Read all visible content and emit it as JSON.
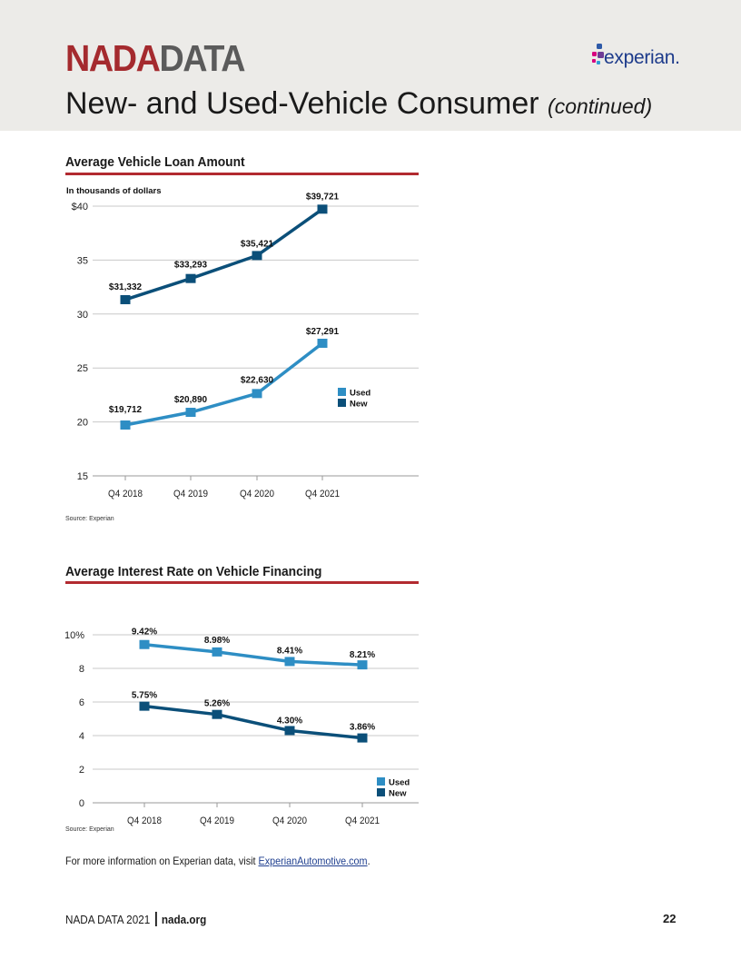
{
  "header": {
    "brand_nada": "NADA",
    "brand_data": "DATA",
    "title": "New- and Used-Vehicle Consumer",
    "title_suffix": "(continued)",
    "logo_text": "experian.",
    "logo_colors": [
      "#2e5aa8",
      "#d7007f",
      "#6e3c96",
      "#2e9bd6"
    ]
  },
  "loan_chart": {
    "title": "Average Vehicle Loan Amount",
    "source": "Source: Experian"
  },
  "rate_chart": {
    "title": "Average Interest Rate on Vehicle Financing",
    "source": "Source: Experian"
  },
  "info": {
    "text": "For more information on Experian data, visit ",
    "link": "ExperianAutomotive.com",
    "end": "."
  },
  "footer": {
    "left": "NADA DATA 2021",
    "site": "nada.org",
    "page": "22"
  },
  "colors": {
    "used": "#2e8ec4",
    "new": "#0b4f79",
    "rule": "#b22a30",
    "grid": "#c8c8c8"
  },
  "chart_data": [
    {
      "type": "line",
      "title": "Average Vehicle Loan Amount",
      "unit_note": "In thousands of dollars",
      "categories": [
        "Q4 2018",
        "Q4 2019",
        "Q4 2020",
        "Q4 2021"
      ],
      "yticks": [
        "$40",
        "35",
        "30",
        "25",
        "20",
        "15"
      ],
      "ytick_values": [
        40,
        35,
        30,
        25,
        20,
        15
      ],
      "ylim": [
        15,
        40
      ],
      "series": [
        {
          "name": "Used",
          "values": [
            19.712,
            20.89,
            22.63,
            27.291
          ],
          "labels": [
            "$19,712",
            "$20,890",
            "$22,630",
            "$27,291"
          ]
        },
        {
          "name": "New",
          "values": [
            31.332,
            33.293,
            35.421,
            39.721
          ],
          "labels": [
            "$31,332",
            "$33,293",
            "$35,421",
            "$39,721"
          ]
        }
      ],
      "legend_position": "right"
    },
    {
      "type": "line",
      "title": "Average Interest Rate on Vehicle Financing",
      "categories": [
        "Q4 2018",
        "Q4 2019",
        "Q4 2020",
        "Q4 2021"
      ],
      "yticks": [
        "10%",
        "8",
        "6",
        "4",
        "2",
        "0"
      ],
      "ytick_values": [
        10,
        8,
        6,
        4,
        2,
        0
      ],
      "ylim": [
        0,
        10
      ],
      "series": [
        {
          "name": "Used",
          "values": [
            9.42,
            8.98,
            8.41,
            8.21
          ],
          "labels": [
            "9.42%",
            "8.98%",
            "8.41%",
            "8.21%"
          ]
        },
        {
          "name": "New",
          "values": [
            5.75,
            5.26,
            4.3,
            3.86
          ],
          "labels": [
            "5.75%",
            "5.26%",
            "4.30%",
            "3.86%"
          ]
        }
      ],
      "legend_position": "bottom-right"
    }
  ]
}
